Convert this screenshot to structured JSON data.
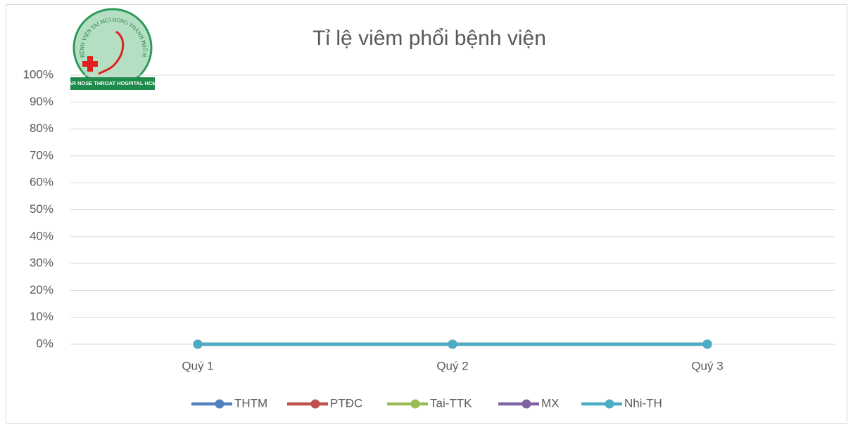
{
  "logo": {
    "ring_text": "BỆNH VIỆN TAI MŨI HỌNG THÀNH PHỐ HỒ CHÍ MINH",
    "caption": "EAR NOSE THROAT HOSPITAL HCMC"
  },
  "chart_data": {
    "type": "line",
    "title": "Tỉ lệ viêm phổi bệnh viện",
    "categories": [
      "Quý 1",
      "Quý 2",
      "Quý 3"
    ],
    "series": [
      {
        "name": "THTM",
        "color": "#4f81bd",
        "values": [
          0,
          0,
          0
        ]
      },
      {
        "name": "PTĐC",
        "color": "#c0504d",
        "values": [
          0,
          0,
          0
        ]
      },
      {
        "name": "Tai-TTK",
        "color": "#9bbb59",
        "values": [
          0,
          0,
          0
        ]
      },
      {
        "name": "MX",
        "color": "#8064a2",
        "values": [
          0,
          0,
          0
        ]
      },
      {
        "name": "Nhi-TH",
        "color": "#4bacc6",
        "values": [
          0,
          0,
          0
        ]
      }
    ],
    "ylim": [
      0,
      100
    ],
    "yticks": [
      {
        "value": 0,
        "label": "0%"
      },
      {
        "value": 10,
        "label": "10%"
      },
      {
        "value": 20,
        "label": "20%"
      },
      {
        "value": 30,
        "label": "30%"
      },
      {
        "value": 40,
        "label": "40%"
      },
      {
        "value": 50,
        "label": "50%"
      },
      {
        "value": 60,
        "label": "60%"
      },
      {
        "value": 70,
        "label": "70%"
      },
      {
        "value": 80,
        "label": "80%"
      },
      {
        "value": 90,
        "label": "90%"
      },
      {
        "value": 100,
        "label": "100%"
      }
    ],
    "grid": true,
    "legend": "bottom"
  }
}
